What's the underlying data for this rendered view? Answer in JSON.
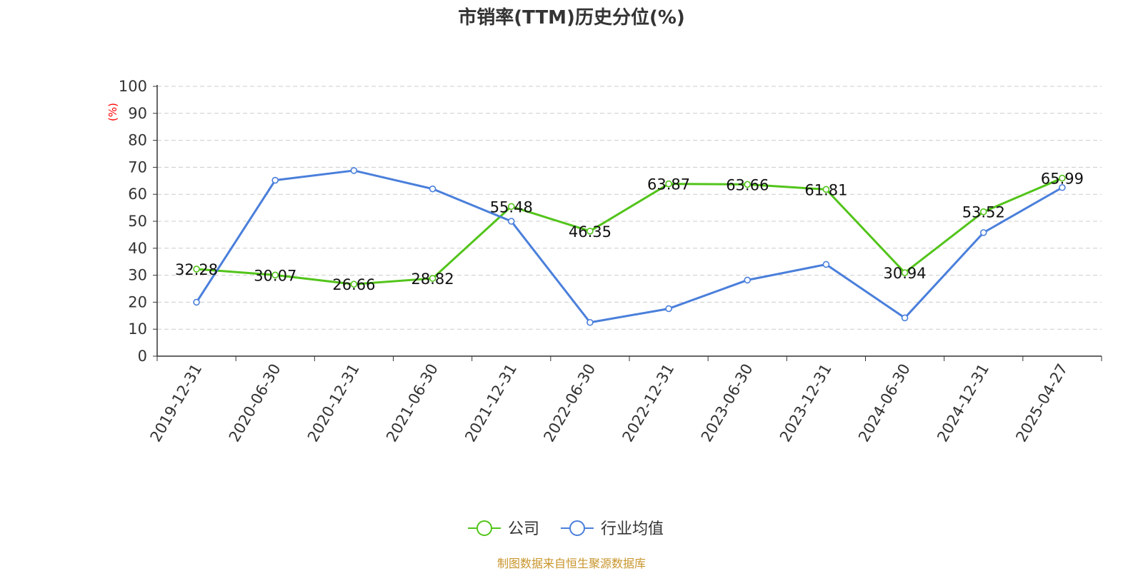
{
  "chart_data": {
    "type": "line",
    "title": "市销率(TTM)历史分位(%)",
    "ylabel": "(%)",
    "xlabel": "",
    "categories": [
      "2019-12-31",
      "2020-06-30",
      "2020-12-31",
      "2021-06-30",
      "2021-12-31",
      "2022-06-30",
      "2022-12-31",
      "2023-06-30",
      "2023-12-31",
      "2024-06-30",
      "2024-12-31",
      "2025-04-27"
    ],
    "ylim": [
      0,
      100
    ],
    "yticks": [
      0,
      10,
      20,
      30,
      40,
      50,
      60,
      70,
      80,
      90,
      100
    ],
    "grid": true,
    "legend_position": "bottom-center",
    "series": [
      {
        "name": "公司",
        "color": "#52c41a",
        "values": [
          32.28,
          30.07,
          26.66,
          28.82,
          55.48,
          46.35,
          63.87,
          63.66,
          61.81,
          30.94,
          53.52,
          65.99
        ],
        "labels": [
          "32.28",
          "30.07",
          "26.66",
          "28.82",
          "55.48",
          "46.35",
          "63.87",
          "63.66",
          "61.81",
          "30.94",
          "53.52",
          "65.99"
        ]
      },
      {
        "name": "行业均值",
        "color": "#4a7fdb",
        "values": [
          20.0,
          65.2,
          68.8,
          62.0,
          50.0,
          12.5,
          17.6,
          28.2,
          34.0,
          14.2,
          45.8,
          62.5
        ]
      }
    ]
  },
  "source": {
    "text": "制图数据来自恒生聚源数据库",
    "color": "#c8952b"
  },
  "ylabel_color": "#ff0000"
}
